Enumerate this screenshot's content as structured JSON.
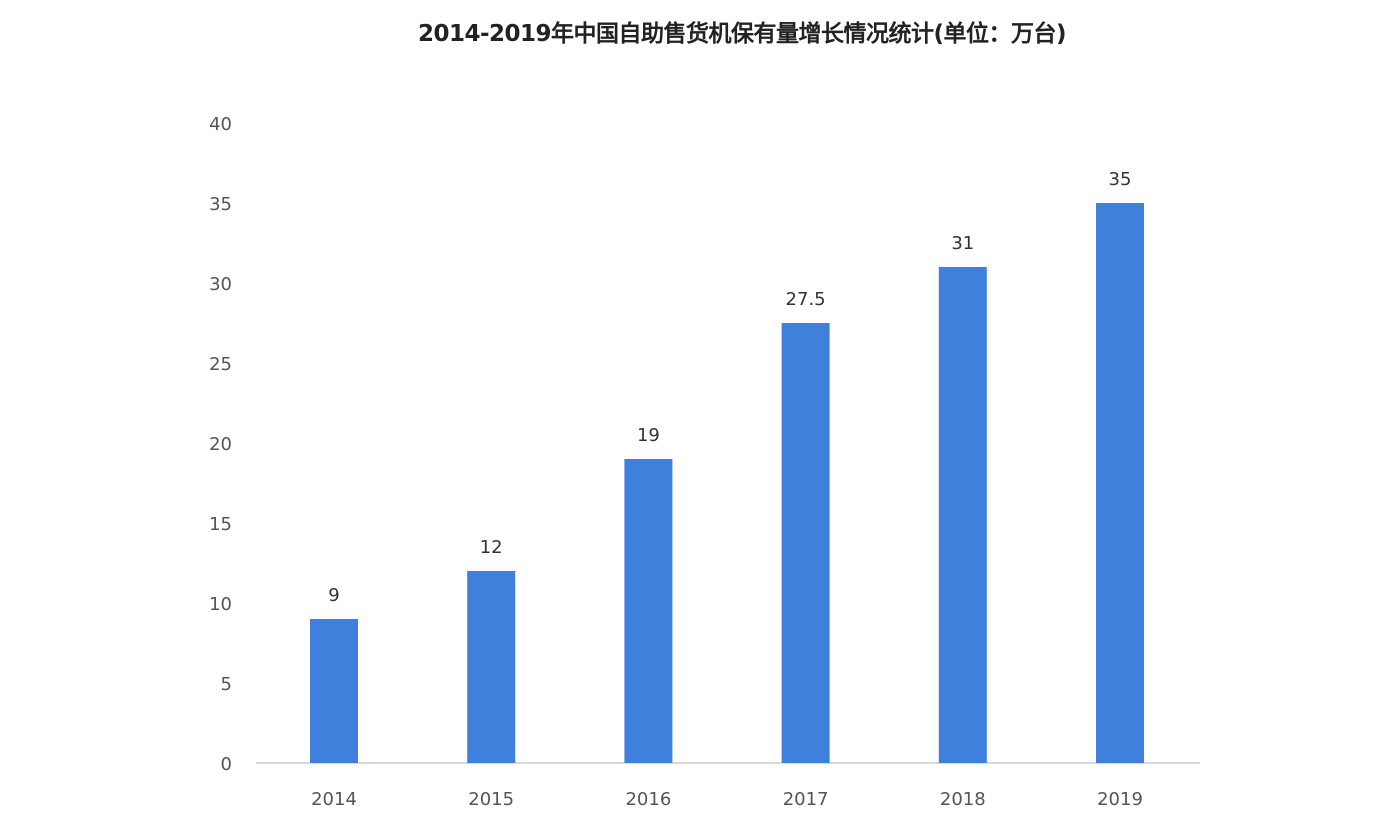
{
  "chart_data": {
    "type": "bar",
    "title": "2014-2019年中国自助售货机保有量增长情况统计(单位：万台)",
    "categories": [
      "2014",
      "2015",
      "2016",
      "2017",
      "2018",
      "2019"
    ],
    "values": [
      9,
      12,
      19,
      27.5,
      31,
      35
    ],
    "data_labels": [
      "9",
      "12",
      "19",
      "27.5",
      "31",
      "35"
    ],
    "xlabel": "",
    "ylabel": "",
    "ylim": [
      0,
      40
    ],
    "yticks": [
      "0",
      "5",
      "10",
      "15",
      "20",
      "25",
      "30",
      "35",
      "40"
    ],
    "grid": false,
    "legend": "none",
    "bar_color": "#3f80dc"
  }
}
